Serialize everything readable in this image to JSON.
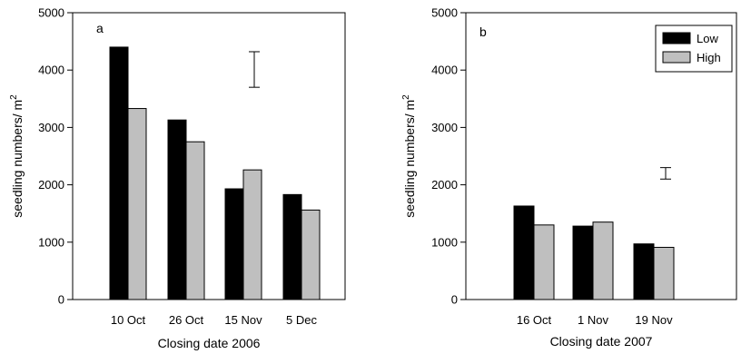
{
  "chart_data": [
    {
      "type": "bar",
      "panel_label": "a",
      "xlabel": "Closing date 2006",
      "ylabel": "seedling numbers/ m",
      "ylabel_superscript": "2",
      "ylim": [
        0,
        5000
      ],
      "yticks": [
        0,
        1000,
        2000,
        3000,
        4000,
        5000
      ],
      "categories": [
        "10 Oct",
        "26 Oct",
        "15 Nov",
        "5 Dec"
      ],
      "series": [
        {
          "key": "low",
          "color": "#000000",
          "values": [
            4400,
            3130,
            1930,
            1830
          ]
        },
        {
          "key": "high",
          "color": "#bfbfbf",
          "values": [
            3330,
            2750,
            2260,
            1560
          ]
        }
      ],
      "error_bar": {
        "low": 3700,
        "high": 4320
      },
      "legend": null
    },
    {
      "type": "bar",
      "panel_label": "b",
      "xlabel": "Closing date 2007",
      "ylabel": "seedling numbers/ m",
      "ylabel_superscript": "2",
      "ylim": [
        0,
        5000
      ],
      "yticks": [
        0,
        1000,
        2000,
        3000,
        4000,
        5000
      ],
      "categories": [
        "16 Oct",
        "1 Nov",
        "19 Nov"
      ],
      "series": [
        {
          "key": "low",
          "name": "Low",
          "color": "#000000",
          "values": [
            1630,
            1280,
            970
          ]
        },
        {
          "key": "high",
          "name": "High",
          "color": "#bfbfbf",
          "values": [
            1300,
            1350,
            910
          ]
        }
      ],
      "error_bar": {
        "low": 2100,
        "high": 2300
      },
      "legend": {
        "position": "top-right",
        "entries": [
          "Low",
          "High"
        ]
      }
    }
  ]
}
